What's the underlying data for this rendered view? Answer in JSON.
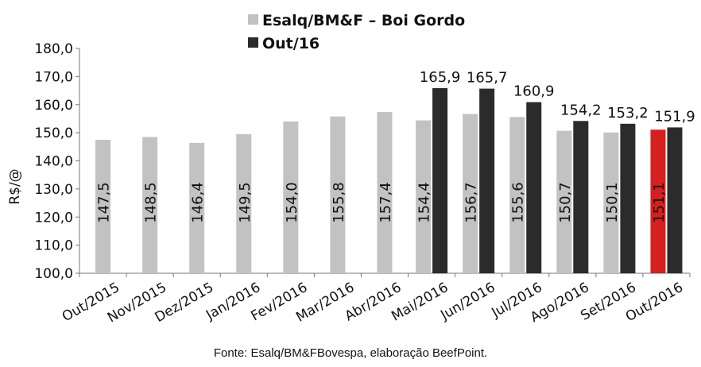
{
  "chart_data": {
    "type": "bar",
    "ylabel": "R$/@",
    "ylim": [
      100,
      180
    ],
    "ytick_step": 10,
    "ytick_labels": [
      "100,0",
      "110,0",
      "120,0",
      "130,0",
      "140,0",
      "150,0",
      "160,0",
      "170,0",
      "180,0"
    ],
    "grid": false,
    "legend_position": "top",
    "categories": [
      "Out/2015",
      "Nov/2015",
      "Dez/2015",
      "Jan/2016",
      "Fev/2016",
      "Mar/2016",
      "Abr/2016",
      "Mai/2016",
      "Jun/2016",
      "Jul/2016",
      "Ago/2016",
      "Set/2016",
      "Out/2016"
    ],
    "series": [
      {
        "name": "Esalq/BM&F – Boi Gordo",
        "color": "#c2c2c2",
        "highlight_color": "#d61f1f",
        "highlight_index": 12,
        "values": [
          147.5,
          148.5,
          146.4,
          149.5,
          154.0,
          155.8,
          157.4,
          154.4,
          156.7,
          155.6,
          150.7,
          150.1,
          151.1
        ],
        "labels": [
          "147,5",
          "148,5",
          "146,4",
          "149,5",
          "154,0",
          "155,8",
          "157,4",
          "154,4",
          "156,7",
          "155,6",
          "150,7",
          "150,1",
          "151,1"
        ]
      },
      {
        "name": "Out/16",
        "color": "#2b2b2b",
        "values": [
          null,
          null,
          null,
          null,
          null,
          null,
          null,
          165.9,
          165.7,
          160.9,
          154.2,
          153.2,
          151.9
        ],
        "labels": [
          "",
          "",
          "",
          "",
          "",
          "",
          "",
          "165,9",
          "165,7",
          "160,9",
          "154,2",
          "153,2",
          "151,9"
        ]
      }
    ],
    "source": "Fonte: Esalq/BM&FBovespa, elaboração BeefPoint."
  }
}
